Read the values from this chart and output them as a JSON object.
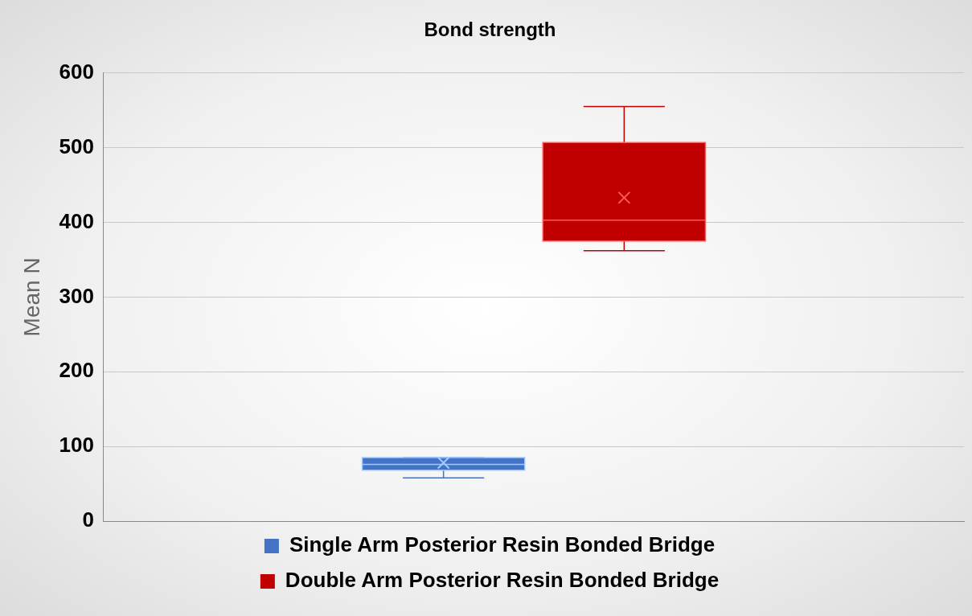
{
  "chart_data": {
    "type": "box",
    "title": "Bond strength",
    "ylabel": "Mean N",
    "categories": [
      null
    ],
    "series": [
      {
        "name": "Single Arm Posterior Resin Bonded Bridge",
        "color": "#4472c4",
        "boxes": [
          {
            "low": 58,
            "q1": 68,
            "median": 76,
            "q3": 85,
            "high": 85,
            "mean": 78
          }
        ]
      },
      {
        "name": "Double Arm Posterior Resin Bonded Bridge",
        "color": "#c00000",
        "boxes": [
          {
            "low": 362,
            "q1": 375,
            "median": 403,
            "q3": 507,
            "high": 555,
            "mean": 433
          }
        ]
      }
    ],
    "ylim": [
      0,
      600
    ],
    "yticks": [
      0,
      100,
      200,
      300,
      400,
      500,
      600
    ],
    "grid": "y",
    "legend": "bottom",
    "marker": "cross"
  }
}
